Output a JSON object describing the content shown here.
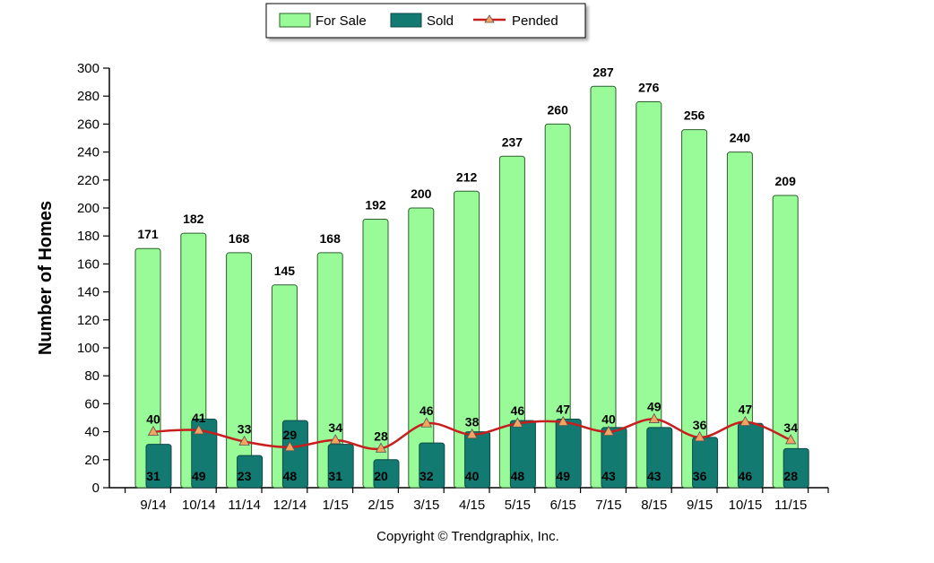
{
  "chart_data": {
    "type": "bar",
    "categories": [
      "9/14",
      "10/14",
      "11/14",
      "12/14",
      "1/15",
      "2/15",
      "3/15",
      "4/15",
      "5/15",
      "6/15",
      "7/15",
      "8/15",
      "9/15",
      "10/15",
      "11/15"
    ],
    "series": [
      {
        "name": "For Sale",
        "type": "bar",
        "color": "#98fb98",
        "stroke": "#2e5e2e",
        "values": [
          171,
          182,
          168,
          145,
          168,
          192,
          200,
          212,
          237,
          260,
          287,
          276,
          256,
          240,
          209
        ]
      },
      {
        "name": "Sold",
        "type": "bar",
        "color": "#137a72",
        "stroke": "#0b4a44",
        "values": [
          31,
          49,
          23,
          48,
          31,
          20,
          32,
          40,
          48,
          49,
          43,
          43,
          36,
          46,
          28
        ]
      },
      {
        "name": "Pended",
        "type": "line",
        "color": "#c81e1e",
        "marker_color": "#f4a460",
        "values": [
          40,
          41,
          33,
          29,
          34,
          28,
          46,
          38,
          46,
          47,
          40,
          49,
          36,
          47,
          34
        ]
      }
    ],
    "title": "",
    "xlabel": "",
    "ylabel": "Number of Homes",
    "ylim": [
      0,
      300
    ],
    "yticks": [
      0,
      20,
      40,
      60,
      80,
      100,
      120,
      140,
      160,
      180,
      200,
      220,
      240,
      260,
      280,
      300
    ],
    "grid": false,
    "legend_position": "top-center"
  },
  "footer": {
    "copyright": "Copyright © Trendgraphix, Inc."
  }
}
